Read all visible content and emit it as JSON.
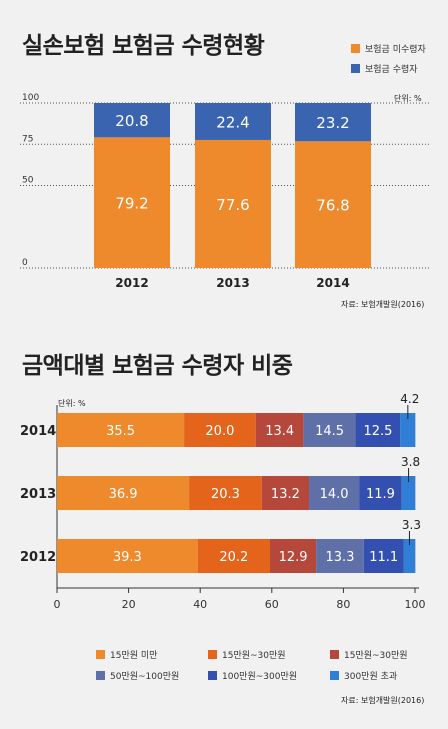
{
  "chart_data": [
    {
      "type": "bar",
      "stacked": true,
      "orientation": "vertical",
      "title": "실손보험 보험금 수령현황",
      "unit": "단위: %",
      "categories": [
        "2012",
        "2013",
        "2014"
      ],
      "series": [
        {
          "name": "보험금 미수령자",
          "color": "#ee8a2c",
          "values": [
            79.2,
            77.6,
            76.8
          ]
        },
        {
          "name": "보험금 수령자",
          "color": "#3a63b0",
          "values": [
            20.8,
            22.4,
            23.2
          ]
        }
      ],
      "yticks": [
        0,
        50,
        75,
        100
      ],
      "ylim": [
        0,
        100
      ],
      "source": "자료: 보험개발원(2016)"
    },
    {
      "type": "bar",
      "stacked": true,
      "orientation": "horizontal",
      "title": "금액대별 보험금 수령자 비중",
      "unit": "단위: %",
      "categories": [
        "2014",
        "2013",
        "2012"
      ],
      "series": [
        {
          "name": "15만원 미만",
          "color": "#ee8a2c",
          "values": [
            35.5,
            36.9,
            39.3
          ]
        },
        {
          "name": "15만원~30만원",
          "color": "#e5641b",
          "values": [
            20.0,
            20.3,
            20.2
          ]
        },
        {
          "name": "15만원~30만원",
          "color": "#b5483b",
          "values": [
            13.4,
            13.2,
            12.9
          ]
        },
        {
          "name": "50만원~100만원",
          "color": "#5f6fa8",
          "values": [
            14.5,
            14.0,
            13.3
          ]
        },
        {
          "name": "100만원~300만원",
          "color": "#3350b0",
          "values": [
            12.5,
            11.9,
            11.1
          ]
        },
        {
          "name": "300만원 초과",
          "color": "#2f7fd6",
          "values": [
            4.2,
            3.8,
            3.3
          ]
        }
      ],
      "xticks": [
        0,
        20,
        40,
        60,
        80,
        100
      ],
      "xlim": [
        0,
        100
      ],
      "source": "자료: 보험개발원(2016)"
    }
  ]
}
